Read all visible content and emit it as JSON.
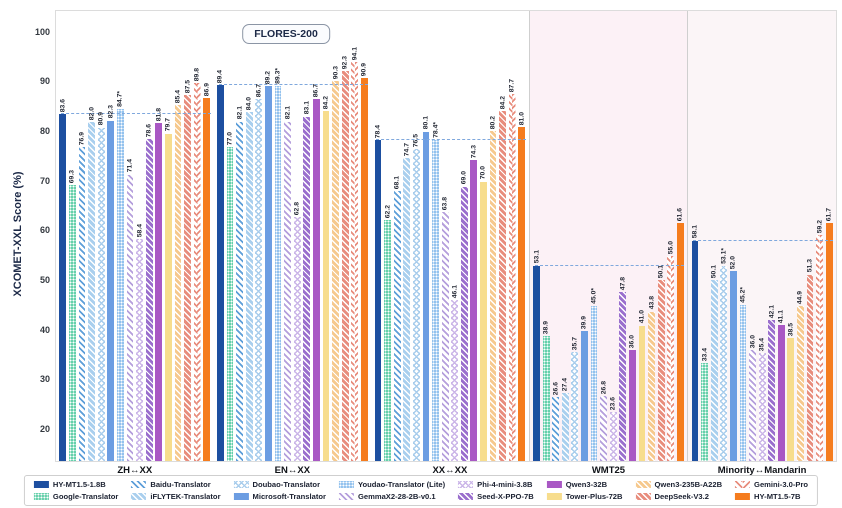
{
  "chart_data": {
    "type": "bar",
    "title_badge": "FLORES-200",
    "ylabel": "XCOMET-XXL Score (%)",
    "yticks": [
      20,
      30,
      40,
      50,
      60,
      70,
      80,
      90,
      100
    ],
    "ylim": [
      13.7,
      104.4
    ],
    "grid": true,
    "legend_position": "bottom",
    "reference_line_note": "dashed blue line per group at HY-MT1.5-1.8B score",
    "section_backgrounds": {
      "flores": "#ffffff",
      "wmt25": "#fcf1f6",
      "minority": "#fbf5f7"
    },
    "models": [
      {
        "name": "HY-MT1.5-1.8B",
        "pattern": "solid",
        "color": "#1d4fa0"
      },
      {
        "name": "Google-Translator",
        "pattern": "dots",
        "color": "#66d0ab"
      },
      {
        "name": "Baidu-Translator",
        "pattern": "diag",
        "color": "#5e9fd9"
      },
      {
        "name": "iFLYTEK-Translator",
        "pattern": "diag-dense",
        "color": "#a9cfee"
      },
      {
        "name": "Doubao-Translator",
        "pattern": "cross",
        "color": "#a9cdec"
      },
      {
        "name": "Microsoft-Translator",
        "pattern": "solid",
        "color": "#6c9de2"
      },
      {
        "name": "Youdao-Translator (Lite)",
        "pattern": "dots",
        "color": "#93c2ee"
      },
      {
        "name": "GemmaX2-28-2B-v0.1",
        "pattern": "diag",
        "color": "#b59fdc"
      },
      {
        "name": "Phi-4-mini-3.8B",
        "pattern": "cross",
        "color": "#cbb6e8"
      },
      {
        "name": "Seed-X-PPO-7B",
        "pattern": "diag-dense",
        "color": "#9a6fcd"
      },
      {
        "name": "Qwen3-32B",
        "pattern": "solid",
        "color": "#a958c4"
      },
      {
        "name": "Tower-Plus-72B",
        "pattern": "solid",
        "color": "#f7dd8d"
      },
      {
        "name": "Qwen3-235B-A22B",
        "pattern": "diag-dense",
        "color": "#f6c98e"
      },
      {
        "name": "DeepSeek-V3.2",
        "pattern": "diag-dense",
        "color": "#e88d7d"
      },
      {
        "name": "Gemini-3.0-Pro",
        "pattern": "herringbone",
        "color": "#e88d7d"
      },
      {
        "name": "HY-MT1.5-7B",
        "pattern": "solid",
        "color": "#f57c1e"
      }
    ],
    "groups": [
      {
        "label": "ZH↔XX",
        "section": "flores",
        "values": [
          "83.6",
          "69.3",
          "76.9",
          "82.0",
          "80.9",
          "82.3",
          "84.7*",
          "71.4",
          "58.4",
          "78.6",
          "81.8",
          "79.7",
          "85.4",
          "87.5",
          "89.8",
          "86.9"
        ]
      },
      {
        "label": "EN↔XX",
        "section": "flores",
        "values": [
          "89.4",
          "77.0",
          "82.1",
          "84.0",
          "86.7",
          "89.2",
          "89.3*",
          "82.1",
          "62.8",
          "83.1",
          "86.7",
          "84.2",
          "90.3",
          "92.3",
          "94.1",
          "90.9"
        ]
      },
      {
        "label": "XX↔XX",
        "section": "flores",
        "values": [
          "78.4",
          "62.2",
          "68.1",
          "74.7",
          "76.5",
          "80.1",
          "78.4*",
          "63.8",
          "46.1",
          "69.0",
          "74.3",
          "70.0",
          "80.2",
          "84.2",
          "87.7",
          "81.0"
        ]
      },
      {
        "label": "WMT25",
        "section": "wmt25",
        "values": [
          "53.1",
          "38.9",
          "26.6",
          "27.4",
          "35.7",
          "39.9",
          "45.0*",
          "26.8",
          "23.6",
          "47.8",
          "36.0",
          "41.0",
          "43.8",
          "50.1",
          "55.0",
          "61.6"
        ]
      },
      {
        "label": "Minority↔Mandarin",
        "section": "minority",
        "values": [
          "58.1",
          "33.4",
          null,
          "50.1",
          "53.1*",
          "52.0",
          "45.2*",
          "36.0",
          "35.4",
          "42.1",
          "41.1",
          "38.5",
          "44.9",
          "51.3",
          "59.2",
          "61.7"
        ]
      }
    ]
  }
}
